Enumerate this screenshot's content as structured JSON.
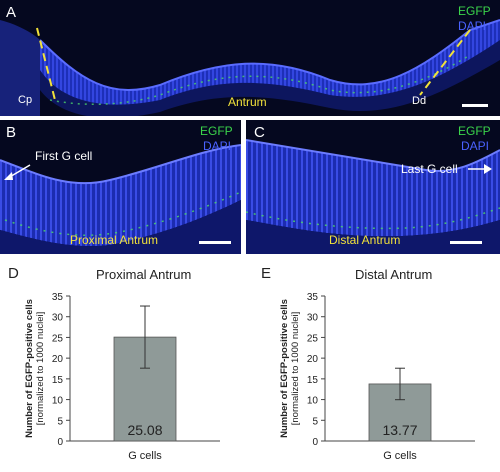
{
  "panels": {
    "a": {
      "letter": "A",
      "egfp": "EGFP",
      "dapi": "DAPI",
      "region": "Antrum",
      "left_label": "Cp",
      "right_label": "Dd"
    },
    "b": {
      "letter": "B",
      "egfp": "EGFP",
      "dapi": "DAPI",
      "region": "Proximal Antrum",
      "annotation": "First G cell"
    },
    "c": {
      "letter": "C",
      "egfp": "EGFP",
      "dapi": "DAPI",
      "region": "Distal Antrum",
      "annotation": "Last G cell"
    }
  },
  "colors": {
    "egfp": "#3bd44b",
    "dapi": "#4a62ff",
    "region": "#f2e23a",
    "bar": "#8f9a98",
    "background": "#05081f"
  },
  "chart_data": [
    {
      "type": "bar",
      "panel_letter": "D",
      "title": "Proximal Antrum",
      "categories": [
        "G cells"
      ],
      "values": [
        25.08
      ],
      "error": [
        7.5
      ],
      "value_labels": [
        "25.08"
      ],
      "ylabel": "Number of EGFP-positive cells",
      "ylabel2": "[normalized to 1000 nuclei]",
      "ylim": [
        0,
        35
      ],
      "yticks": [
        0,
        5,
        10,
        15,
        20,
        25,
        30,
        35
      ],
      "grid": false
    },
    {
      "type": "bar",
      "panel_letter": "E",
      "title": "Distal Antrum",
      "categories": [
        "G cells"
      ],
      "values": [
        13.77
      ],
      "error": [
        3.8
      ],
      "value_labels": [
        "13.77"
      ],
      "ylabel": "Number of EGFP-positive cells",
      "ylabel2": "[normalized to 1000 nuclei]",
      "ylim": [
        0,
        35
      ],
      "yticks": [
        0,
        5,
        10,
        15,
        20,
        25,
        30,
        35
      ],
      "grid": false
    }
  ]
}
